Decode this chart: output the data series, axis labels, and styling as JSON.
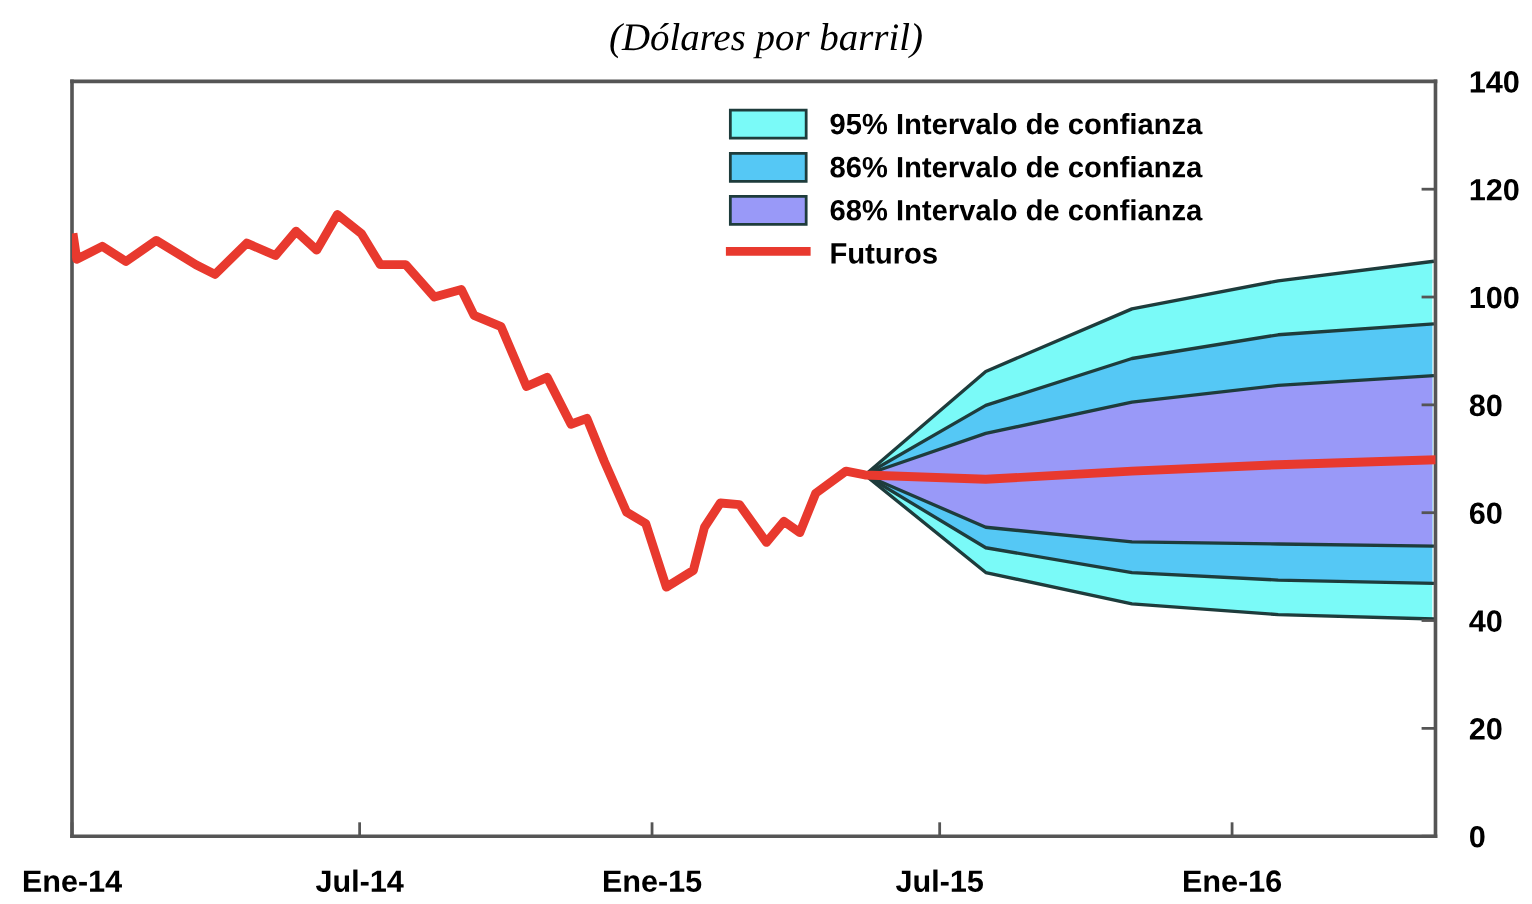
{
  "chart_data": {
    "type": "line",
    "subtitle": "(Dólares por barril)",
    "ylim": [
      0,
      140
    ],
    "yticks": [
      0,
      20,
      40,
      60,
      80,
      100,
      120,
      140
    ],
    "xlim": [
      "2014-01-01",
      "2016-05-08"
    ],
    "xticks": [
      {
        "value": "2014-01-01",
        "label": "Ene-14"
      },
      {
        "value": "2014-07-01",
        "label": "Jul-14"
      },
      {
        "value": "2015-01-01",
        "label": "Ene-15"
      },
      {
        "value": "2015-07-01",
        "label": "Jul-15"
      },
      {
        "value": "2016-01-01",
        "label": "Ene-16"
      }
    ],
    "grid": false,
    "legend": "top",
    "marker": "none",
    "line_style": "solid",
    "series": [
      {
        "name": "95% Intervalo de confianza",
        "type": "area",
        "color": "#7afaf8",
        "x": [
          "2015-05-15",
          "2015-07-30",
          "2015-10-30",
          "2016-01-30",
          "2016-05-06"
        ],
        "values": [
          67,
          86.2,
          97.8,
          103,
          106.6
        ]
      },
      {
        "name": "86% Intervalo de confianza",
        "type": "area",
        "color": "#55c8f5",
        "x": [
          "2015-05-15",
          "2015-07-30",
          "2015-10-30",
          "2016-01-30",
          "2016-05-06"
        ],
        "values": [
          67,
          79.9,
          88.6,
          93,
          95
        ]
      },
      {
        "name": "68% Intervalo de confianza",
        "type": "area",
        "color": "#9999f8",
        "x": [
          "2015-05-15",
          "2015-07-30",
          "2015-10-30",
          "2016-01-30",
          "2016-05-06"
        ],
        "values": [
          67,
          74.7,
          80.5,
          83.6,
          85.4
        ]
      },
      {
        "type": "line",
        "color": "#1e3c3c",
        "x": [
          "2015-05-15",
          "2015-07-30",
          "2015-10-30",
          "2016-01-30",
          "2016-05-06"
        ],
        "values": [
          67,
          48.9,
          43.1,
          41.1,
          40.3
        ]
      },
      {
        "type": "line",
        "color": "#1e3c3c",
        "x": [
          "2015-05-15",
          "2015-07-30",
          "2015-10-30",
          "2016-01-30",
          "2016-05-06"
        ],
        "values": [
          67,
          53.5,
          48.9,
          47.5,
          46.9
        ]
      },
      {
        "type": "line",
        "color": "#1e3c3c",
        "x": [
          "2015-05-15",
          "2015-07-30",
          "2015-10-30",
          "2016-01-30",
          "2016-05-06"
        ],
        "values": [
          67,
          57.3,
          54.6,
          54.2,
          53.8
        ]
      },
      {
        "name": "Futuros",
        "color": "#e8392e",
        "x": [
          "2014-01-02",
          "2014-01-04",
          "2014-01-20",
          "2014-02-04",
          "2014-02-23",
          "2014-03-20",
          "2014-04-01",
          "2014-04-21",
          "2014-05-09",
          "2014-05-22",
          "2014-06-04",
          "2014-06-17",
          "2014-07-02",
          "2014-07-14",
          "2014-07-30",
          "2014-08-17",
          "2014-09-03",
          "2014-09-11",
          "2014-09-28",
          "2014-10-14",
          "2014-10-27",
          "2014-11-11",
          "2014-11-21",
          "2014-12-02",
          "2014-12-16",
          "2014-12-28",
          "2015-01-10",
          "2015-01-27",
          "2015-02-03",
          "2015-02-13",
          "2015-02-25",
          "2015-03-14",
          "2015-03-25",
          "2015-04-04",
          "2015-04-14",
          "2015-05-03",
          "2015-05-15",
          "2015-07-30",
          "2015-10-30",
          "2016-01-30",
          "2016-05-06"
        ],
        "values": [
          111,
          107,
          109.4,
          106.6,
          110.5,
          106,
          104.2,
          110,
          107.7,
          112.2,
          108.7,
          115.3,
          111.8,
          106,
          106,
          100,
          101.4,
          96.6,
          94.5,
          83.4,
          85.1,
          76.4,
          77.5,
          69.5,
          60.1,
          58,
          46.2,
          49.3,
          57.3,
          61.8,
          61.5,
          54.5,
          58.4,
          56.3,
          63.6,
          67.7,
          67,
          66.2,
          67.7,
          68.9,
          69.8
        ]
      }
    ]
  }
}
